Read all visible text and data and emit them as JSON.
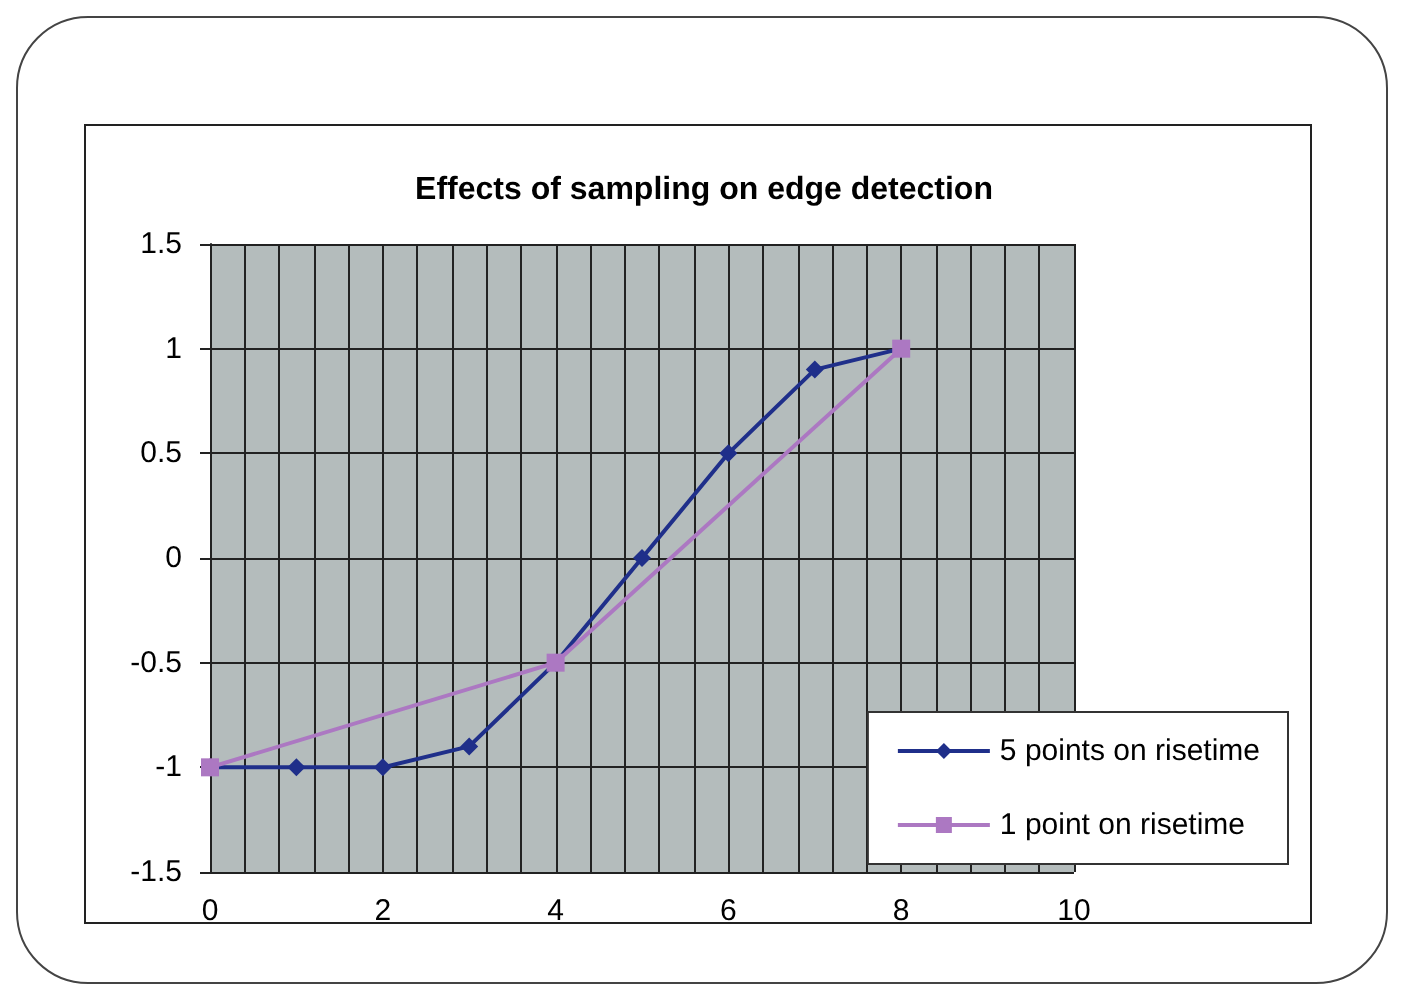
{
  "chart_data": {
    "type": "line",
    "title": "Effects of sampling on edge detection",
    "series": [
      {
        "name": "5 points on risetime",
        "color": "#1f2f8a",
        "marker": "diamond",
        "x": [
          0,
          1,
          2,
          3,
          4,
          5,
          6,
          7,
          8
        ],
        "values": [
          -1,
          -1,
          -1,
          -0.9,
          -0.5,
          0,
          0.5,
          0.9,
          1
        ]
      },
      {
        "name": "1 point on risetime",
        "color": "#ac78c2",
        "marker": "square",
        "x": [
          0,
          4,
          8
        ],
        "values": [
          -1,
          -0.5,
          1
        ]
      }
    ],
    "xlim": [
      0,
      10
    ],
    "xticks": [
      0,
      2,
      4,
      6,
      8,
      10
    ],
    "ylim": [
      -1.5,
      1.5
    ],
    "yticks": [
      -1.5,
      -1,
      -0.5,
      0,
      0.5,
      1,
      1.5
    ],
    "grid": true,
    "legend": "bottom right",
    "line_style": "solid"
  }
}
